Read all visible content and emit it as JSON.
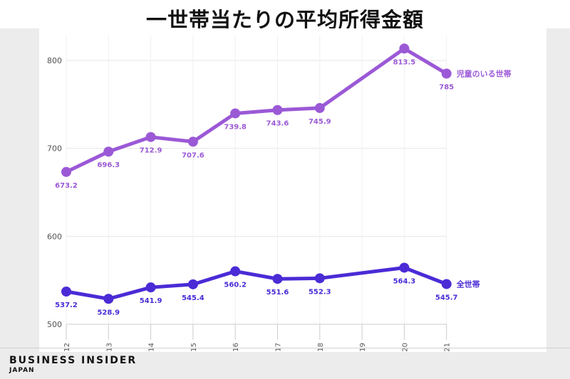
{
  "page": {
    "title": "一世帯当たりの平均所得金額",
    "brand": "BUSINESS INSIDER",
    "brand_sub": "JAPAN"
  },
  "chart_data": {
    "type": "line",
    "title": "一世帯当たりの平均所得金額",
    "xlabel": "",
    "ylabel": "",
    "categories": [
      "2012",
      "2013",
      "2014",
      "2015",
      "2016",
      "2017",
      "2018",
      "2019",
      "2020",
      "2021"
    ],
    "ylim": [
      500,
      840
    ],
    "yticks": [
      500,
      600,
      700,
      800
    ],
    "grid": true,
    "series": [
      {
        "name": "児童のいる世帯",
        "color": "#9b59d6",
        "points": [
          {
            "x": "2012",
            "y": 673.2,
            "label": "673.2"
          },
          {
            "x": "2013",
            "y": 696.3,
            "label": "696.3"
          },
          {
            "x": "2014",
            "y": 712.9,
            "label": "712.9"
          },
          {
            "x": "2015",
            "y": 707.6,
            "label": "707.6"
          },
          {
            "x": "2016",
            "y": 739.8,
            "label": "739.8"
          },
          {
            "x": "2017",
            "y": 743.6,
            "label": "743.6"
          },
          {
            "x": "2018",
            "y": 745.9,
            "label": "745.9"
          },
          {
            "x": "2020",
            "y": 813.5,
            "label": "813.5"
          },
          {
            "x": "2021",
            "y": 785,
            "label": "785"
          }
        ]
      },
      {
        "name": "全世帯",
        "color": "#4a2bd6",
        "points": [
          {
            "x": "2012",
            "y": 537.2,
            "label": "537.2"
          },
          {
            "x": "2013",
            "y": 528.9,
            "label": "528.9"
          },
          {
            "x": "2014",
            "y": 541.9,
            "label": "541.9"
          },
          {
            "x": "2015",
            "y": 545.4,
            "label": "545.4"
          },
          {
            "x": "2016",
            "y": 560.2,
            "label": "560.2"
          },
          {
            "x": "2017",
            "y": 551.6,
            "label": "551.6"
          },
          {
            "x": "2018",
            "y": 552.3,
            "label": "552.3"
          },
          {
            "x": "2020",
            "y": 564.3,
            "label": "564.3"
          },
          {
            "x": "2021",
            "y": 545.7,
            "label": "545.7"
          }
        ]
      }
    ]
  }
}
